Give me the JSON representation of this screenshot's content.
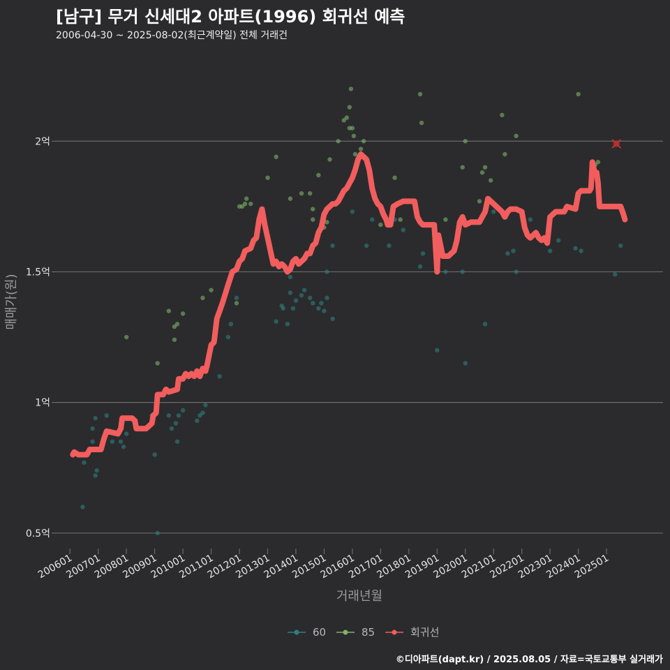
{
  "title": "[남구] 무거 신세대2 아파트(1996) 회귀선 예측",
  "subtitle": "2006-04-30 ~ 2025-08-02(최근계약일) 전체 거래건",
  "caption": "©디아파트(dapt.kr) / 2025.08.05 / 자료=국토교통부 실거래가",
  "colors": {
    "background": "#2b2b2d",
    "grid": "#6a6a6a",
    "series_60": "#2f7f7f",
    "series_85": "#7fb36b",
    "regression": "#f25d5d"
  },
  "chart_data": {
    "type": "scatter",
    "xlabel": "거래년월",
    "ylabel": "매매가(원)",
    "xlim": [
      2005.5,
      2027.0
    ],
    "ylim": [
      0.43,
      2.34
    ],
    "y_unit": "억",
    "yticks": [
      {
        "value": 0.5,
        "label": "0.5억"
      },
      {
        "value": 1.0,
        "label": "1억"
      },
      {
        "value": 1.5,
        "label": "1.5억"
      },
      {
        "value": 2.0,
        "label": "2억"
      }
    ],
    "xticks": [
      {
        "value": 2006.0,
        "label": "200601"
      },
      {
        "value": 2007.0,
        "label": "200701"
      },
      {
        "value": 2008.0,
        "label": "200801"
      },
      {
        "value": 2009.0,
        "label": "200901"
      },
      {
        "value": 2010.0,
        "label": "201001"
      },
      {
        "value": 2011.0,
        "label": "201101"
      },
      {
        "value": 2012.0,
        "label": "201201"
      },
      {
        "value": 2013.0,
        "label": "201301"
      },
      {
        "value": 2014.0,
        "label": "201401"
      },
      {
        "value": 2015.0,
        "label": "201501"
      },
      {
        "value": 2016.0,
        "label": "201601"
      },
      {
        "value": 2017.0,
        "label": "201701"
      },
      {
        "value": 2018.0,
        "label": "201801"
      },
      {
        "value": 2019.0,
        "label": "201901"
      },
      {
        "value": 2020.0,
        "label": "202001"
      },
      {
        "value": 2021.0,
        "label": "202101"
      },
      {
        "value": 2022.0,
        "label": "202201"
      },
      {
        "value": 2023.0,
        "label": "202301"
      },
      {
        "value": 2024.0,
        "label": "202401"
      },
      {
        "value": 2025.0,
        "label": "202501"
      }
    ],
    "legend": [
      {
        "key": "60",
        "label": "60",
        "color": "#2f7f7f"
      },
      {
        "key": "85",
        "label": "85",
        "color": "#7fb36b"
      },
      {
        "key": "reg",
        "label": "회귀선",
        "color": "#f25d5d"
      }
    ],
    "series": [
      {
        "name": "60",
        "points": [
          [
            2006.3,
            0.8
          ],
          [
            2006.45,
            0.6
          ],
          [
            2006.5,
            0.77
          ],
          [
            2006.8,
            0.85
          ],
          [
            2006.8,
            0.9
          ],
          [
            2006.9,
            0.72
          ],
          [
            2006.95,
            0.74
          ],
          [
            2006.9,
            0.94
          ],
          [
            2007.3,
            0.95
          ],
          [
            2007.5,
            0.85
          ],
          [
            2007.6,
            0.88
          ],
          [
            2007.8,
            0.85
          ],
          [
            2007.9,
            0.83
          ],
          [
            2008.0,
            0.88
          ],
          [
            2008.6,
            0.9
          ],
          [
            2008.9,
            0.95
          ],
          [
            2009.0,
            0.8
          ],
          [
            2009.1,
            0.5
          ],
          [
            2009.5,
            0.95
          ],
          [
            2009.6,
            0.9
          ],
          [
            2009.75,
            0.92
          ],
          [
            2009.8,
            0.85
          ],
          [
            2009.85,
            0.95
          ],
          [
            2010.0,
            0.97
          ],
          [
            2010.5,
            0.93
          ],
          [
            2010.6,
            0.95
          ],
          [
            2010.7,
            0.96
          ],
          [
            2010.8,
            0.99
          ],
          [
            2011.3,
            1.1
          ],
          [
            2011.6,
            1.25
          ],
          [
            2011.7,
            1.3
          ],
          [
            2011.9,
            1.4
          ],
          [
            2013.3,
            1.31
          ],
          [
            2013.5,
            1.37
          ],
          [
            2013.55,
            1.36
          ],
          [
            2013.7,
            1.3
          ],
          [
            2013.8,
            1.42
          ],
          [
            2013.8,
            1.48
          ],
          [
            2013.9,
            1.36
          ],
          [
            2014.0,
            1.39
          ],
          [
            2014.2,
            1.41
          ],
          [
            2014.3,
            1.43
          ],
          [
            2014.5,
            1.4
          ],
          [
            2014.6,
            1.38
          ],
          [
            2014.8,
            1.36
          ],
          [
            2014.9,
            1.38
          ],
          [
            2015.0,
            1.35
          ],
          [
            2015.1,
            1.4
          ],
          [
            2015.1,
            1.5
          ],
          [
            2015.3,
            1.32
          ],
          [
            2015.3,
            1.6
          ],
          [
            2016.0,
            1.73
          ],
          [
            2016.5,
            1.6
          ],
          [
            2016.7,
            1.7
          ],
          [
            2017.3,
            1.6
          ],
          [
            2017.5,
            1.7
          ],
          [
            2017.8,
            1.66
          ],
          [
            2018.4,
            1.52
          ],
          [
            2018.5,
            1.57
          ],
          [
            2019.0,
            1.2
          ],
          [
            2019.3,
            1.5
          ],
          [
            2019.9,
            1.5
          ],
          [
            2020.0,
            1.15
          ],
          [
            2020.3,
            1.69
          ],
          [
            2020.7,
            1.3
          ],
          [
            2021.0,
            1.73
          ],
          [
            2021.5,
            1.57
          ],
          [
            2021.7,
            1.58
          ],
          [
            2021.8,
            1.5
          ],
          [
            2022.3,
            1.7
          ],
          [
            2022.5,
            1.64
          ],
          [
            2023.0,
            1.58
          ],
          [
            2023.3,
            1.62
          ],
          [
            2023.9,
            1.59
          ],
          [
            2024.1,
            1.58
          ],
          [
            2025.3,
            1.49
          ],
          [
            2025.5,
            1.6
          ]
        ]
      },
      {
        "name": "85",
        "points": [
          [
            2008.0,
            1.25
          ],
          [
            2009.1,
            1.15
          ],
          [
            2009.5,
            1.35
          ],
          [
            2009.7,
            1.24
          ],
          [
            2009.7,
            1.29
          ],
          [
            2009.8,
            1.3
          ],
          [
            2010.0,
            1.34
          ],
          [
            2010.7,
            1.4
          ],
          [
            2011.0,
            1.43
          ],
          [
            2011.9,
            1.38
          ],
          [
            2012.0,
            1.75
          ],
          [
            2012.1,
            1.75
          ],
          [
            2012.2,
            1.76
          ],
          [
            2012.25,
            1.78
          ],
          [
            2012.4,
            1.76
          ],
          [
            2013.0,
            1.86
          ],
          [
            2013.3,
            1.94
          ],
          [
            2013.8,
            1.78
          ],
          [
            2014.2,
            1.8
          ],
          [
            2014.5,
            1.8
          ],
          [
            2014.6,
            1.74
          ],
          [
            2014.6,
            1.7
          ],
          [
            2014.8,
            1.87
          ],
          [
            2015.0,
            1.67
          ],
          [
            2015.1,
            1.69
          ],
          [
            2015.2,
            1.93
          ],
          [
            2015.5,
            2.0
          ],
          [
            2015.7,
            2.08
          ],
          [
            2015.8,
            2.09
          ],
          [
            2015.9,
            2.05
          ],
          [
            2015.9,
            2.13
          ],
          [
            2015.95,
            2.2
          ],
          [
            2016.0,
            2.05
          ],
          [
            2016.05,
            2.02
          ],
          [
            2016.1,
            1.95
          ],
          [
            2016.3,
            1.97
          ],
          [
            2016.4,
            2.0
          ],
          [
            2016.5,
            1.92
          ],
          [
            2017.0,
            1.68
          ],
          [
            2017.5,
            1.86
          ],
          [
            2017.7,
            1.7
          ],
          [
            2018.4,
            2.18
          ],
          [
            2018.45,
            2.07
          ],
          [
            2019.3,
            1.7
          ],
          [
            2019.9,
            1.9
          ],
          [
            2020.0,
            2.0
          ],
          [
            2020.5,
            1.77
          ],
          [
            2020.6,
            1.88
          ],
          [
            2020.7,
            1.9
          ],
          [
            2020.9,
            1.85
          ],
          [
            2021.3,
            2.1
          ],
          [
            2021.4,
            1.95
          ],
          [
            2021.8,
            2.02
          ],
          [
            2024.0,
            2.18
          ],
          [
            2024.5,
            1.92
          ],
          [
            2024.6,
            1.91
          ],
          [
            2024.7,
            1.92
          ]
        ]
      }
    ],
    "regression": [
      [
        2006.1,
        0.8
      ],
      [
        2006.15,
        0.81
      ],
      [
        2006.3,
        0.8
      ],
      [
        2006.6,
        0.8
      ],
      [
        2006.7,
        0.82
      ],
      [
        2007.1,
        0.82
      ],
      [
        2007.2,
        0.86
      ],
      [
        2007.3,
        0.89
      ],
      [
        2007.7,
        0.88
      ],
      [
        2007.8,
        0.9
      ],
      [
        2007.85,
        0.94
      ],
      [
        2008.2,
        0.94
      ],
      [
        2008.3,
        0.93
      ],
      [
        2008.35,
        0.9
      ],
      [
        2008.7,
        0.9
      ],
      [
        2008.9,
        0.92
      ],
      [
        2008.95,
        0.95
      ],
      [
        2009.05,
        0.96
      ],
      [
        2009.1,
        1.03
      ],
      [
        2009.3,
        1.03
      ],
      [
        2009.4,
        1.05
      ],
      [
        2009.5,
        1.04
      ],
      [
        2009.8,
        1.05
      ],
      [
        2009.85,
        1.09
      ],
      [
        2010.0,
        1.09
      ],
      [
        2010.1,
        1.11
      ],
      [
        2010.2,
        1.1
      ],
      [
        2010.3,
        1.11
      ],
      [
        2010.4,
        1.1
      ],
      [
        2010.5,
        1.12
      ],
      [
        2010.6,
        1.1
      ],
      [
        2010.7,
        1.13
      ],
      [
        2010.8,
        1.12
      ],
      [
        2010.85,
        1.14
      ],
      [
        2011.0,
        1.22
      ],
      [
        2011.1,
        1.23
      ],
      [
        2011.2,
        1.32
      ],
      [
        2011.4,
        1.38
      ],
      [
        2011.6,
        1.45
      ],
      [
        2011.75,
        1.5
      ],
      [
        2011.9,
        1.51
      ],
      [
        2012.0,
        1.54
      ],
      [
        2012.1,
        1.55
      ],
      [
        2012.2,
        1.58
      ],
      [
        2012.4,
        1.59
      ],
      [
        2012.5,
        1.62
      ],
      [
        2012.6,
        1.63
      ],
      [
        2012.7,
        1.7
      ],
      [
        2012.8,
        1.74
      ],
      [
        2012.9,
        1.68
      ],
      [
        2013.0,
        1.63
      ],
      [
        2013.1,
        1.58
      ],
      [
        2013.2,
        1.53
      ],
      [
        2013.3,
        1.54
      ],
      [
        2013.4,
        1.52
      ],
      [
        2013.5,
        1.53
      ],
      [
        2013.6,
        1.52
      ],
      [
        2013.7,
        1.5
      ],
      [
        2013.8,
        1.51
      ],
      [
        2013.9,
        1.54
      ],
      [
        2014.0,
        1.55
      ],
      [
        2014.1,
        1.53
      ],
      [
        2014.2,
        1.54
      ],
      [
        2014.3,
        1.55
      ],
      [
        2014.4,
        1.57
      ],
      [
        2014.5,
        1.57
      ],
      [
        2014.6,
        1.6
      ],
      [
        2014.7,
        1.61
      ],
      [
        2014.8,
        1.65
      ],
      [
        2014.9,
        1.67
      ],
      [
        2015.0,
        1.72
      ],
      [
        2015.1,
        1.74
      ],
      [
        2015.2,
        1.75
      ],
      [
        2015.3,
        1.76
      ],
      [
        2015.4,
        1.76
      ],
      [
        2015.5,
        1.77
      ],
      [
        2015.6,
        1.79
      ],
      [
        2015.7,
        1.81
      ],
      [
        2015.8,
        1.82
      ],
      [
        2015.9,
        1.84
      ],
      [
        2016.0,
        1.86
      ],
      [
        2016.1,
        1.89
      ],
      [
        2016.2,
        1.93
      ],
      [
        2016.3,
        1.95
      ],
      [
        2016.4,
        1.94
      ],
      [
        2016.5,
        1.93
      ],
      [
        2016.6,
        1.89
      ],
      [
        2016.7,
        1.82
      ],
      [
        2016.8,
        1.78
      ],
      [
        2016.9,
        1.76
      ],
      [
        2017.0,
        1.75
      ],
      [
        2017.1,
        1.72
      ],
      [
        2017.2,
        1.7
      ],
      [
        2017.25,
        1.68
      ],
      [
        2017.35,
        1.68
      ],
      [
        2017.45,
        1.75
      ],
      [
        2017.6,
        1.76
      ],
      [
        2017.8,
        1.77
      ],
      [
        2018.2,
        1.77
      ],
      [
        2018.3,
        1.71
      ],
      [
        2018.4,
        1.69
      ],
      [
        2018.5,
        1.68
      ],
      [
        2018.9,
        1.68
      ],
      [
        2019.0,
        1.5
      ],
      [
        2019.05,
        1.64
      ],
      [
        2019.2,
        1.56
      ],
      [
        2019.4,
        1.56
      ],
      [
        2019.5,
        1.57
      ],
      [
        2019.6,
        1.58
      ],
      [
        2019.7,
        1.62
      ],
      [
        2019.8,
        1.69
      ],
      [
        2019.9,
        1.71
      ],
      [
        2020.0,
        1.68
      ],
      [
        2020.2,
        1.69
      ],
      [
        2020.5,
        1.69
      ],
      [
        2020.6,
        1.71
      ],
      [
        2020.7,
        1.73
      ],
      [
        2020.8,
        1.78
      ],
      [
        2020.9,
        1.77
      ],
      [
        2021.0,
        1.76
      ],
      [
        2021.1,
        1.75
      ],
      [
        2021.3,
        1.73
      ],
      [
        2021.4,
        1.71
      ],
      [
        2021.5,
        1.73
      ],
      [
        2021.6,
        1.74
      ],
      [
        2021.8,
        1.74
      ],
      [
        2022.0,
        1.73
      ],
      [
        2022.1,
        1.67
      ],
      [
        2022.2,
        1.64
      ],
      [
        2022.3,
        1.63
      ],
      [
        2022.4,
        1.64
      ],
      [
        2022.5,
        1.65
      ],
      [
        2022.6,
        1.63
      ],
      [
        2022.7,
        1.62
      ],
      [
        2022.8,
        1.63
      ],
      [
        2022.9,
        1.61
      ],
      [
        2023.0,
        1.71
      ],
      [
        2023.1,
        1.72
      ],
      [
        2023.2,
        1.73
      ],
      [
        2023.5,
        1.73
      ],
      [
        2023.6,
        1.75
      ],
      [
        2023.9,
        1.74
      ],
      [
        2024.0,
        1.8
      ],
      [
        2024.1,
        1.81
      ],
      [
        2024.4,
        1.81
      ],
      [
        2024.45,
        1.82
      ],
      [
        2024.5,
        1.92
      ],
      [
        2024.6,
        1.87
      ],
      [
        2024.65,
        1.88
      ],
      [
        2024.7,
        1.84
      ],
      [
        2024.75,
        1.75
      ],
      [
        2024.9,
        1.75
      ],
      [
        2025.3,
        1.75
      ],
      [
        2025.5,
        1.75
      ],
      [
        2025.6,
        1.72
      ],
      [
        2025.65,
        1.7
      ]
    ],
    "outlier": {
      "x": 2025.35,
      "y": 1.99,
      "marker": "x"
    }
  }
}
